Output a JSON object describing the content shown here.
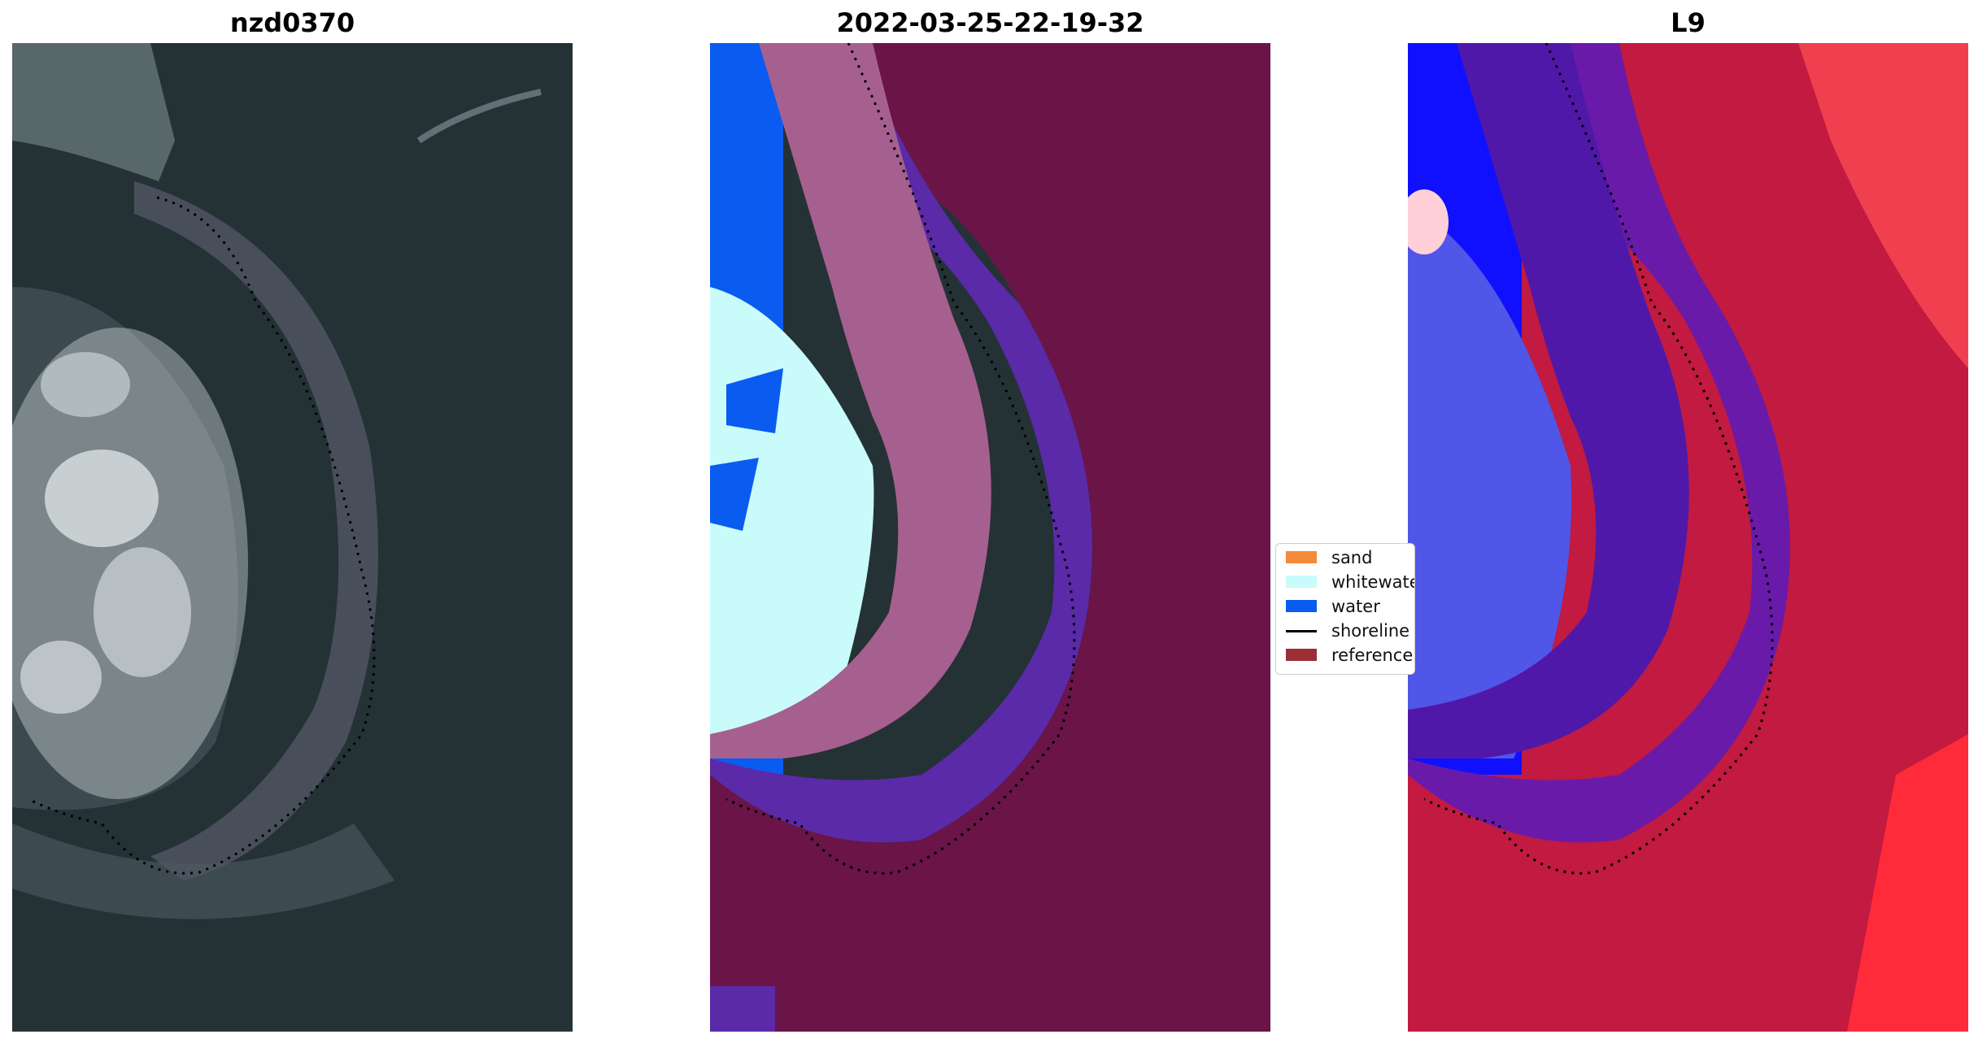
{
  "titles": {
    "left": "nzd0370",
    "center": "2022-03-25-22-19-32",
    "right": "L9"
  },
  "legend": {
    "items": [
      {
        "label": "sand",
        "color": "#f28a3a",
        "kind": "patch"
      },
      {
        "label": "whitewater",
        "color": "#c9fbfb",
        "kind": "patch"
      },
      {
        "label": "water",
        "color": "#0a5cf0",
        "kind": "patch"
      },
      {
        "label": "shoreline",
        "color": "#000000",
        "kind": "line"
      },
      {
        "label": "reference",
        "color": "#9b2f33",
        "kind": "patch"
      }
    ]
  },
  "colors": {
    "rgb_background": "#243236",
    "class_land": "#6a1447",
    "class_purple": "#5a2aa8",
    "class_pink": "#a6608f",
    "class_whitewater": "#c9fbfb",
    "class_water": "#0a5cf0",
    "index_low": "#1010ff",
    "index_mid": "#6a1aa8",
    "index_high": "#d81536"
  }
}
